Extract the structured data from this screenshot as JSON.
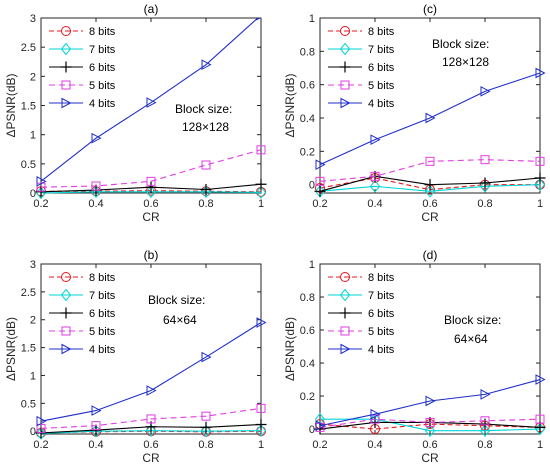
{
  "chart_data": [
    {
      "type": "line",
      "title": "(a)",
      "xlabel": "CR",
      "ylabel": "ΔPSNR(dB)",
      "x": [
        0.2,
        0.4,
        0.6,
        0.8,
        1
      ],
      "xticks": [
        "0.2",
        "0.4",
        "0.6",
        "0.8",
        "1"
      ],
      "xlim": [
        0.2,
        1
      ],
      "ylim": [
        0,
        3
      ],
      "yticks": [
        "0",
        "0.5",
        "1",
        "1.5",
        "2",
        "2.5",
        "3"
      ],
      "yticks_values": [
        0,
        0.5,
        1,
        1.5,
        2,
        2.5,
        3
      ],
      "annotation": [
        "Block size:",
        "128×128"
      ],
      "legend": "top-left",
      "series": [
        {
          "name": "8 bits",
          "color": "#e8141b",
          "values": [
            0.03,
            0.03,
            0.04,
            0.03,
            0.02
          ]
        },
        {
          "name": "7 bits",
          "color": "#00d6d6",
          "values": [
            0.0,
            0.02,
            0.02,
            0.02,
            0.01
          ]
        },
        {
          "name": "6 bits",
          "color": "#000000",
          "values": [
            0.02,
            0.05,
            0.1,
            0.06,
            0.15
          ]
        },
        {
          "name": "5 bits",
          "color": "#e33be3",
          "values": [
            0.1,
            0.12,
            0.2,
            0.48,
            0.74
          ]
        },
        {
          "name": "4 bits",
          "color": "#1f2ecc",
          "values": [
            0.2,
            0.94,
            1.55,
            2.2,
            3.05
          ]
        }
      ]
    },
    {
      "type": "line",
      "title": "(c)",
      "xlabel": "CR",
      "ylabel": "ΔPSNR(dB)",
      "x": [
        0.2,
        0.4,
        0.6,
        0.8,
        1
      ],
      "xticks": [
        "0.2",
        "0.4",
        "0.6",
        "0.8",
        "1"
      ],
      "xlim": [
        0.2,
        1
      ],
      "ylim": [
        -0.05,
        1
      ],
      "yticks": [
        "0",
        "0.2",
        "0.4",
        "0.6",
        "0.8",
        "1"
      ],
      "yticks_values": [
        0,
        0.2,
        0.4,
        0.6,
        0.8,
        1
      ],
      "annotation": [
        "Block size:",
        "128×128"
      ],
      "legend": "top-left",
      "series": [
        {
          "name": "8 bits",
          "color": "#e8141b",
          "values": [
            -0.02,
            0.04,
            -0.03,
            0.0,
            0.0
          ]
        },
        {
          "name": "7 bits",
          "color": "#00d6d6",
          "values": [
            -0.04,
            -0.01,
            -0.04,
            -0.01,
            0.0
          ]
        },
        {
          "name": "6 bits",
          "color": "#000000",
          "values": [
            -0.04,
            0.05,
            0.0,
            0.01,
            0.04
          ]
        },
        {
          "name": "5 bits",
          "color": "#e33be3",
          "values": [
            0.02,
            0.05,
            0.14,
            0.15,
            0.14
          ]
        },
        {
          "name": "4 bits",
          "color": "#1f2ecc",
          "values": [
            0.12,
            0.27,
            0.4,
            0.56,
            0.67
          ]
        }
      ]
    },
    {
      "type": "line",
      "title": "(b)",
      "xlabel": "CR",
      "ylabel": "ΔPSNR(dB)",
      "x": [
        0.2,
        0.4,
        0.6,
        0.8,
        1
      ],
      "xticks": [
        "0.2",
        "0.4",
        "0.6",
        "0.8",
        "1"
      ],
      "xlim": [
        0.2,
        1
      ],
      "ylim": [
        -0.05,
        3
      ],
      "yticks": [
        "0",
        "0.5",
        "1",
        "1.5",
        "2",
        "2.5",
        "3"
      ],
      "yticks_values": [
        0,
        0.5,
        1,
        1.5,
        2,
        2.5,
        3
      ],
      "annotation": [
        "Block size:",
        "64×64"
      ],
      "legend": "top-left",
      "series": [
        {
          "name": "8 bits",
          "color": "#e8141b",
          "values": [
            -0.03,
            -0.01,
            0.0,
            -0.01,
            0.0
          ]
        },
        {
          "name": "7 bits",
          "color": "#00d6d6",
          "values": [
            -0.04,
            0.0,
            0.01,
            0.0,
            0.01
          ]
        },
        {
          "name": "6 bits",
          "color": "#000000",
          "values": [
            -0.03,
            0.02,
            0.08,
            0.07,
            0.12
          ]
        },
        {
          "name": "5 bits",
          "color": "#e33be3",
          "values": [
            0.05,
            0.1,
            0.22,
            0.27,
            0.41
          ]
        },
        {
          "name": "4 bits",
          "color": "#1f2ecc",
          "values": [
            0.18,
            0.37,
            0.73,
            1.33,
            1.95
          ]
        }
      ]
    },
    {
      "type": "line",
      "title": "(d)",
      "xlabel": "CR",
      "ylabel": "ΔPSNR(dB)",
      "x": [
        0.2,
        0.4,
        0.6,
        0.8,
        1
      ],
      "xticks": [
        "0.2",
        "0.4",
        "0.6",
        "0.8",
        "1"
      ],
      "xlim": [
        0.2,
        1
      ],
      "ylim": [
        -0.03,
        1
      ],
      "yticks": [
        "0",
        "0.2",
        "0.4",
        "0.6",
        "0.8",
        "1"
      ],
      "yticks_values": [
        0,
        0.2,
        0.4,
        0.6,
        0.8,
        1
      ],
      "annotation": [
        "Block size:",
        "64×64"
      ],
      "legend": "top-left",
      "series": [
        {
          "name": "8 bits",
          "color": "#e8141b",
          "values": [
            0.03,
            0.0,
            0.03,
            0.02,
            0.01
          ]
        },
        {
          "name": "7 bits",
          "color": "#00d6d6",
          "values": [
            0.06,
            0.06,
            -0.01,
            -0.01,
            0.0
          ]
        },
        {
          "name": "6 bits",
          "color": "#000000",
          "values": [
            0.0,
            0.04,
            0.04,
            0.03,
            0.01
          ]
        },
        {
          "name": "5 bits",
          "color": "#e33be3",
          "values": [
            0.01,
            0.06,
            0.04,
            0.05,
            0.06
          ]
        },
        {
          "name": "4 bits",
          "color": "#1f2ecc",
          "values": [
            0.02,
            0.09,
            0.17,
            0.21,
            0.3
          ]
        }
      ]
    }
  ]
}
